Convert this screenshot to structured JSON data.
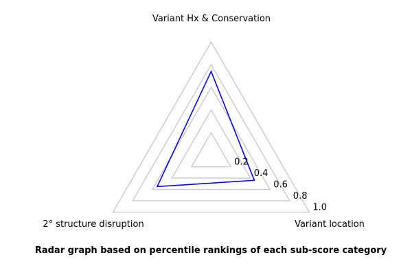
{
  "caption": "Radar graph based on percentile rankings of each sub-score category",
  "chart_data": {
    "type": "radar",
    "axes": [
      "Variant Hx & Conservation",
      "Variant location",
      "2° structure disruption"
    ],
    "range": [
      0,
      1.0
    ],
    "rings": [
      0.2,
      0.4,
      0.6,
      0.8,
      1.0
    ],
    "tick_labels": [
      "0.2",
      "0.4",
      "0.6",
      "0.8",
      "1.0"
    ],
    "series": [
      {
        "values": [
          0.74,
          0.44,
          0.55
        ]
      }
    ],
    "colors": {
      "series": "#0000ff",
      "grid": "#cccccc"
    }
  }
}
